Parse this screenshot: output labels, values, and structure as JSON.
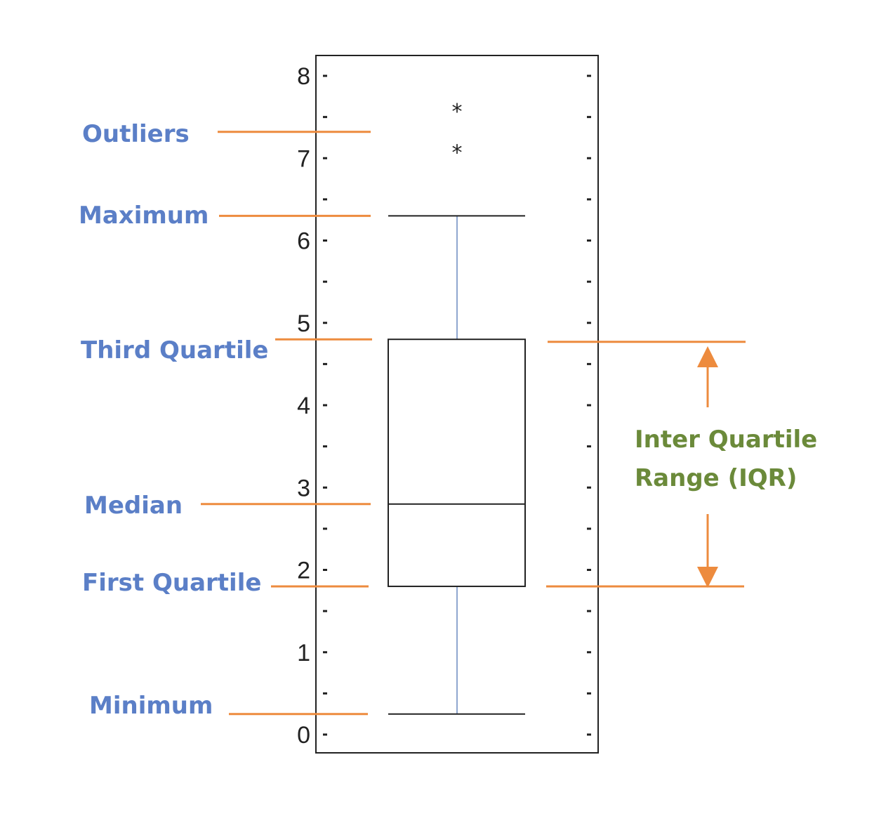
{
  "colors": {
    "annotation_label": "#5b7fc7",
    "leader_line": "#ed8b3e",
    "iqr_label": "#6b8a3a",
    "box_outline": "#222222",
    "whisker": "#8fa6cf"
  },
  "annotations": {
    "outliers": "Outliers",
    "maximum": "Maximum",
    "third_quartile": "Third Quartile",
    "median": "Median",
    "first_quartile": "First Quartile",
    "minimum": "Minimum",
    "iqr_line1": "Inter Quartile",
    "iqr_line2": "Range (IQR)"
  },
  "chart_data": {
    "type": "box",
    "title": "",
    "xlabel": "",
    "ylabel": "",
    "ylim": [
      0,
      8.3
    ],
    "y_ticks": [
      0,
      1,
      2,
      3,
      4,
      5,
      6,
      7,
      8
    ],
    "y_tick_labels": [
      "0",
      "1",
      "2",
      "3",
      "4",
      "5",
      "6",
      "7",
      "8"
    ],
    "minor_tick_step": 0.5,
    "grid": false,
    "box": {
      "min": 0.25,
      "q1": 1.8,
      "median": 2.8,
      "q3": 4.8,
      "max": 6.3,
      "outliers": [
        7.6,
        7.1
      ]
    },
    "outlier_marker": "*"
  }
}
